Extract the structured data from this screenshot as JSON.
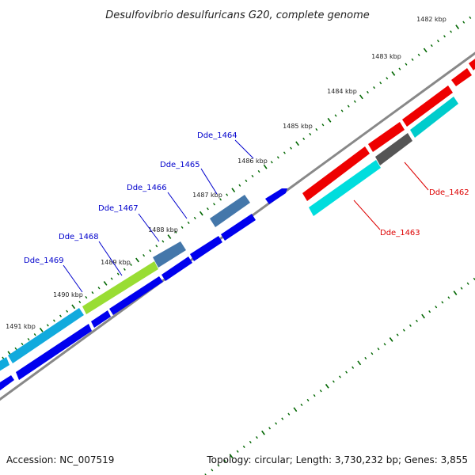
{
  "title": "Desulfovibrio desulfuricans G20, complete genome",
  "footer": {
    "accession": "Accession: NC_007519",
    "summary": "Topology: circular; Length: 3,730,232 bp; Genes: 3,855"
  },
  "kbp_ticks": [
    "1482 kbp",
    "1483 kbp",
    "1484 kbp",
    "1485 kbp",
    "1486 kbp",
    "1487 kbp",
    "1488 kbp",
    "1489 kbp",
    "1490 kbp",
    "1491 kbp"
  ],
  "gene_labels": [
    {
      "id": "Dde_1464",
      "color": "#0000cc"
    },
    {
      "id": "Dde_1465",
      "color": "#0000cc"
    },
    {
      "id": "Dde_1466",
      "color": "#0000cc"
    },
    {
      "id": "Dde_1467",
      "color": "#0000cc"
    },
    {
      "id": "Dde_1468",
      "color": "#0000cc"
    },
    {
      "id": "Dde_1469",
      "color": "#0000cc"
    },
    {
      "id": "Dde_1462",
      "color": "#dd0000"
    },
    {
      "id": "Dde_1463",
      "color": "#dd0000"
    }
  ],
  "colors": {
    "backbone": "#888888",
    "forward_blue": "#0000ee",
    "reverse_red": "#ee0000",
    "cyan": "#00dddd",
    "sky": "#11aadd",
    "steel": "#4477aa",
    "lime": "#99dd33",
    "gray_gene": "#555555",
    "tick_green": "#006600"
  }
}
